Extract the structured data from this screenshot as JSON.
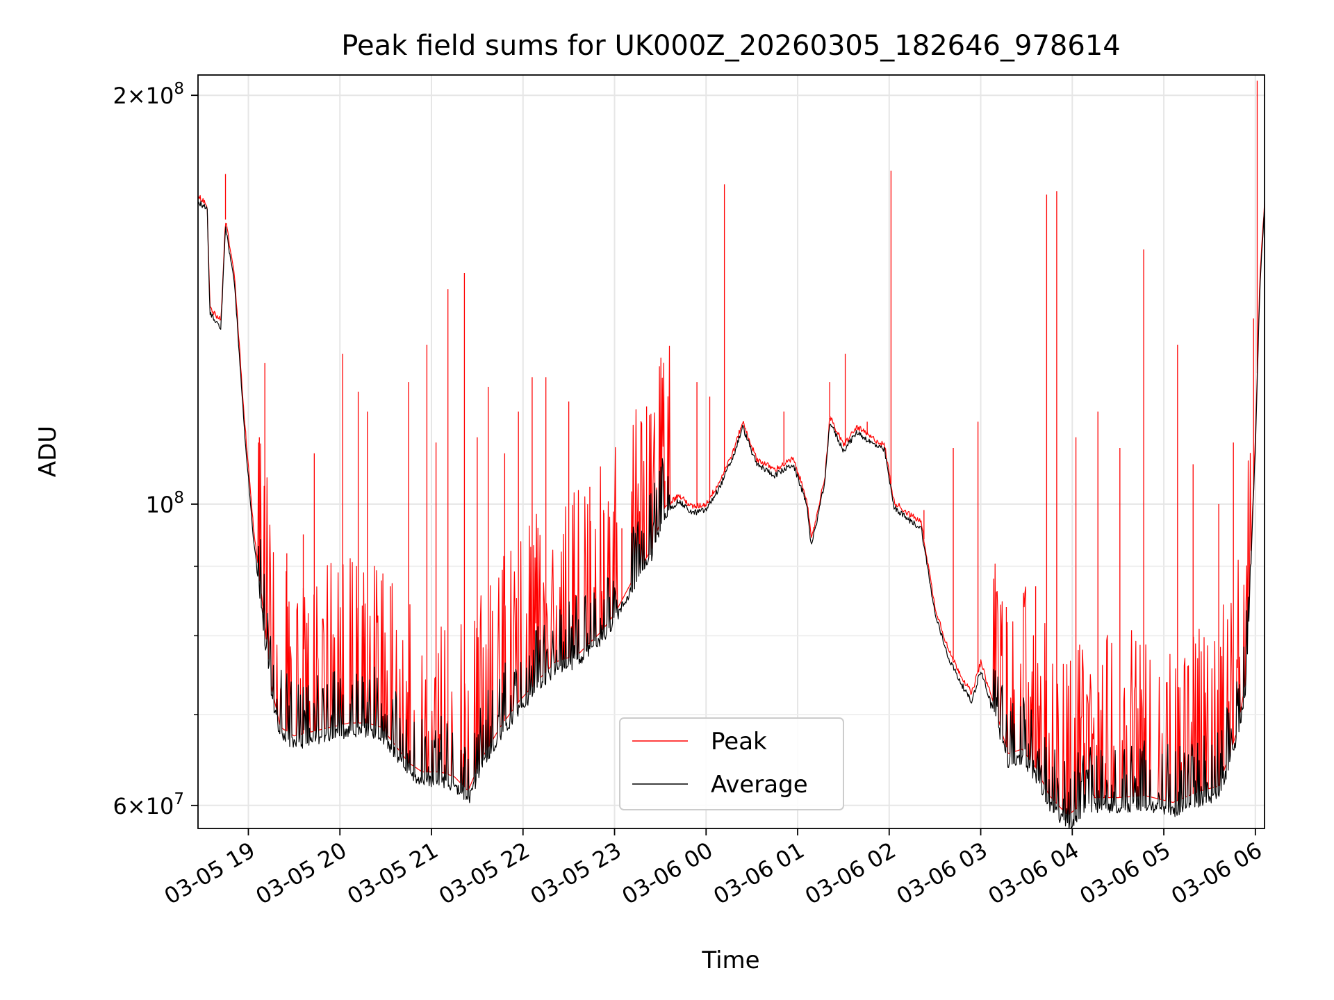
{
  "chart_data": {
    "type": "line",
    "title": "Peak field sums for UK000Z_20260305_182646_978614",
    "xlabel": "Time",
    "ylabel": "ADU",
    "yscale": "log",
    "xlim": [
      18.45,
      30.1
    ],
    "ylim": [
      57700000,
      207000000
    ],
    "x_unit": "hours since 2026-03-05 00:00",
    "xticks": [
      {
        "value": 19,
        "label": "03-05 19"
      },
      {
        "value": 20,
        "label": "03-05 20"
      },
      {
        "value": 21,
        "label": "03-05 21"
      },
      {
        "value": 22,
        "label": "03-05 22"
      },
      {
        "value": 23,
        "label": "03-05 23"
      },
      {
        "value": 24,
        "label": "03-06 00"
      },
      {
        "value": 25,
        "label": "03-06 01"
      },
      {
        "value": 26,
        "label": "03-06 02"
      },
      {
        "value": 27,
        "label": "03-06 03"
      },
      {
        "value": 28,
        "label": "03-06 04"
      },
      {
        "value": 29,
        "label": "03-06 05"
      },
      {
        "value": 30,
        "label": "03-06 06"
      }
    ],
    "yticks_major": [
      {
        "value": 60000000,
        "base": "6",
        "exp": "7"
      },
      {
        "value": 100000000,
        "base": "",
        "exp": "8"
      },
      {
        "value": 200000000,
        "base": "2",
        "exp": "8"
      }
    ],
    "yticks_minor": [
      70000000,
      80000000,
      90000000
    ],
    "times_sep": "×",
    "times_ten": "10",
    "grid": true,
    "legend": {
      "position": "lower-center",
      "entries": [
        "Peak",
        "Average"
      ]
    },
    "colors": {
      "Peak": "#ff0000",
      "Average": "#000000"
    },
    "series": [
      {
        "name": "Average",
        "color": "#000000",
        "points": [
          [
            18.45,
            167000000
          ],
          [
            18.55,
            165000000
          ],
          [
            18.58,
            138000000
          ],
          [
            18.7,
            135000000
          ],
          [
            18.75,
            160000000
          ],
          [
            18.85,
            145000000
          ],
          [
            18.95,
            115000000
          ],
          [
            19.05,
            95000000
          ],
          [
            19.15,
            83000000
          ],
          [
            19.25,
            72000000
          ],
          [
            19.35,
            67500000
          ],
          [
            19.5,
            66500000
          ],
          [
            19.7,
            67000000
          ],
          [
            19.9,
            67500000
          ],
          [
            20.1,
            68000000
          ],
          [
            20.3,
            68000000
          ],
          [
            20.45,
            67500000
          ],
          [
            20.6,
            65500000
          ],
          [
            20.75,
            63500000
          ],
          [
            20.9,
            62500000
          ],
          [
            21.1,
            62500000
          ],
          [
            21.25,
            62000000
          ],
          [
            21.4,
            60500000
          ],
          [
            21.55,
            64000000
          ],
          [
            21.75,
            67500000
          ],
          [
            21.95,
            70500000
          ],
          [
            22.15,
            73000000
          ],
          [
            22.35,
            75500000
          ],
          [
            22.6,
            76500000
          ],
          [
            22.85,
            79500000
          ],
          [
            23.0,
            82000000
          ],
          [
            23.2,
            87000000
          ],
          [
            23.4,
            91500000
          ],
          [
            23.55,
            98500000
          ],
          [
            23.7,
            100500000
          ],
          [
            23.85,
            98500000
          ],
          [
            24.0,
            99000000
          ],
          [
            24.15,
            103000000
          ],
          [
            24.3,
            108500000
          ],
          [
            24.4,
            114000000
          ],
          [
            24.55,
            107000000
          ],
          [
            24.75,
            105000000
          ],
          [
            24.95,
            107000000
          ],
          [
            25.1,
            100000000
          ],
          [
            25.15,
            93000000
          ],
          [
            25.3,
            104000000
          ],
          [
            25.35,
            115000000
          ],
          [
            25.5,
            109500000
          ],
          [
            25.65,
            113000000
          ],
          [
            25.8,
            111000000
          ],
          [
            25.95,
            109500000
          ],
          [
            26.05,
            99500000
          ],
          [
            26.2,
            97500000
          ],
          [
            26.35,
            96000000
          ],
          [
            26.5,
            83000000
          ],
          [
            26.65,
            77000000
          ],
          [
            26.8,
            73500000
          ],
          [
            26.9,
            71500000
          ],
          [
            27.0,
            75500000
          ],
          [
            27.15,
            70000000
          ],
          [
            27.3,
            64500000
          ],
          [
            27.45,
            65000000
          ],
          [
            27.6,
            63000000
          ],
          [
            27.75,
            60000000
          ],
          [
            27.95,
            58000000
          ],
          [
            28.2,
            59800000
          ],
          [
            28.5,
            59800000
          ],
          [
            28.8,
            60000000
          ],
          [
            29.1,
            59300000
          ],
          [
            29.4,
            60500000
          ],
          [
            29.6,
            61000000
          ],
          [
            29.8,
            67000000
          ],
          [
            29.9,
            73500000
          ],
          [
            30.0,
            110000000
          ],
          [
            30.05,
            145000000
          ],
          [
            30.1,
            165000000
          ]
        ]
      },
      {
        "name": "Peak",
        "color": "#ff0000",
        "points": [
          [
            18.45,
            168500000
          ],
          [
            18.55,
            166500000
          ],
          [
            18.58,
            139500000
          ],
          [
            18.7,
            136500000
          ],
          [
            18.75,
            162000000
          ],
          [
            18.85,
            147000000
          ],
          [
            18.95,
            117000000
          ],
          [
            19.05,
            97000000
          ],
          [
            19.15,
            85000000
          ],
          [
            19.25,
            73500000
          ],
          [
            19.35,
            68500000
          ],
          [
            19.5,
            67500000
          ],
          [
            19.7,
            68000000
          ],
          [
            19.9,
            68500000
          ],
          [
            20.1,
            69000000
          ],
          [
            20.3,
            69000000
          ],
          [
            20.45,
            68500000
          ],
          [
            20.6,
            66500000
          ],
          [
            20.75,
            64500000
          ],
          [
            20.9,
            63500000
          ],
          [
            21.1,
            63500000
          ],
          [
            21.25,
            63000000
          ],
          [
            21.4,
            61500000
          ],
          [
            21.55,
            65000000
          ],
          [
            21.75,
            68500000
          ],
          [
            21.95,
            71500000
          ],
          [
            22.15,
            74000000
          ],
          [
            22.35,
            76500000
          ],
          [
            22.6,
            77500000
          ],
          [
            22.85,
            80500000
          ],
          [
            23.0,
            83000000
          ],
          [
            23.2,
            88000000
          ],
          [
            23.4,
            92500000
          ],
          [
            23.55,
            99500000
          ],
          [
            23.7,
            101500000
          ],
          [
            23.85,
            99500000
          ],
          [
            24.0,
            100000000
          ],
          [
            24.15,
            104000000
          ],
          [
            24.3,
            109500000
          ],
          [
            24.4,
            115000000
          ],
          [
            24.55,
            108000000
          ],
          [
            24.75,
            106000000
          ],
          [
            24.95,
            108000000
          ],
          [
            25.1,
            101000000
          ],
          [
            25.15,
            94000000
          ],
          [
            25.3,
            105000000
          ],
          [
            25.35,
            116000000
          ],
          [
            25.5,
            110500000
          ],
          [
            25.65,
            114000000
          ],
          [
            25.8,
            112000000
          ],
          [
            25.95,
            110500000
          ],
          [
            26.05,
            100500000
          ],
          [
            26.2,
            98500000
          ],
          [
            26.35,
            97000000
          ],
          [
            26.5,
            84000000
          ],
          [
            26.65,
            78000000
          ],
          [
            26.8,
            74500000
          ],
          [
            26.9,
            72500000
          ],
          [
            27.0,
            76500000
          ],
          [
            27.15,
            71000000
          ],
          [
            27.3,
            65500000
          ],
          [
            27.45,
            66000000
          ],
          [
            27.6,
            64000000
          ],
          [
            27.75,
            61000000
          ],
          [
            27.95,
            59000000
          ],
          [
            28.2,
            60800000
          ],
          [
            28.5,
            60800000
          ],
          [
            28.8,
            61000000
          ],
          [
            29.1,
            60300000
          ],
          [
            29.4,
            61500000
          ],
          [
            29.6,
            62000000
          ],
          [
            29.8,
            68000000
          ],
          [
            29.9,
            74500000
          ],
          [
            30.0,
            112000000
          ],
          [
            30.05,
            147000000
          ],
          [
            30.1,
            167000000
          ]
        ],
        "spikes": [
          [
            18.75,
            175000000
          ],
          [
            19.12,
            112000000
          ],
          [
            19.18,
            127000000
          ],
          [
            19.42,
            92000000
          ],
          [
            19.6,
            95000000
          ],
          [
            19.72,
            109000000
          ],
          [
            20.03,
            129000000
          ],
          [
            20.2,
            121000000
          ],
          [
            20.3,
            117000000
          ],
          [
            20.55,
            87000000
          ],
          [
            20.75,
            123000000
          ],
          [
            20.95,
            131000000
          ],
          [
            21.05,
            111000000
          ],
          [
            21.18,
            144000000
          ],
          [
            21.36,
            148000000
          ],
          [
            21.5,
            112000000
          ],
          [
            21.62,
            122000000
          ],
          [
            21.8,
            109000000
          ],
          [
            21.95,
            117000000
          ],
          [
            22.1,
            124000000
          ],
          [
            22.25,
            124000000
          ],
          [
            22.5,
            119000000
          ],
          [
            22.73,
            103000000
          ],
          [
            22.88,
            99000000
          ],
          [
            23.08,
            96000000
          ],
          [
            23.35,
            118000000
          ],
          [
            23.55,
            104000000
          ],
          [
            23.9,
            123000000
          ],
          [
            24.04,
            120000000
          ],
          [
            24.2,
            172000000
          ],
          [
            24.85,
            117000000
          ],
          [
            25.35,
            123000000
          ],
          [
            25.52,
            129000000
          ],
          [
            25.76,
            115000000
          ],
          [
            26.02,
            176000000
          ],
          [
            26.38,
            99000000
          ],
          [
            26.7,
            110000000
          ],
          [
            26.97,
            115000000
          ],
          [
            27.28,
            84000000
          ],
          [
            27.6,
            87000000
          ],
          [
            27.72,
            169000000
          ],
          [
            27.83,
            170000000
          ],
          [
            28.04,
            112000000
          ],
          [
            28.28,
            117000000
          ],
          [
            28.52,
            110000000
          ],
          [
            28.78,
            154000000
          ],
          [
            29.15,
            131000000
          ],
          [
            29.32,
            107000000
          ],
          [
            29.6,
            100000000
          ],
          [
            29.76,
            111000000
          ],
          [
            29.98,
            137000000
          ],
          [
            30.02,
            205000000
          ]
        ]
      }
    ]
  }
}
